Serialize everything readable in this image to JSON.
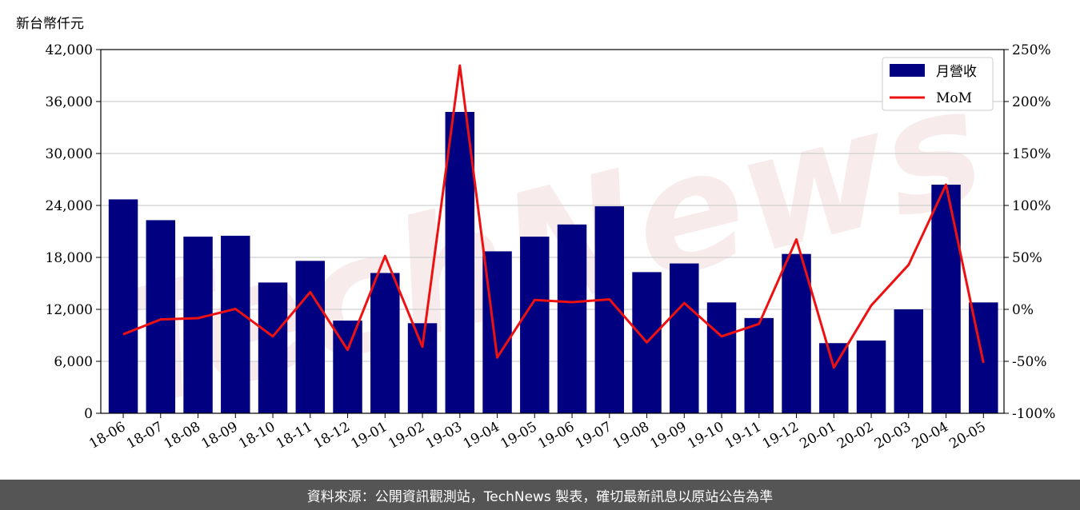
{
  "unit_label": "新台幣仟元",
  "watermark": "TechNews",
  "footer": "資料來源：公開資訊觀測站，TechNews 製表，確切最新訊息以原站公告為準",
  "colors": {
    "bar": "#000080",
    "line": "#ee1111",
    "grid": "#d0d0d0",
    "footer_bg": "#555555"
  },
  "chart_data": {
    "type": "bar",
    "categories": [
      "18-06",
      "18-07",
      "18-08",
      "18-09",
      "18-10",
      "18-11",
      "18-12",
      "19-01",
      "19-02",
      "19-03",
      "19-04",
      "19-05",
      "19-06",
      "19-07",
      "19-08",
      "19-09",
      "19-10",
      "19-11",
      "19-12",
      "20-01",
      "20-02",
      "20-03",
      "20-04",
      "20-05"
    ],
    "series": [
      {
        "name": "月營收",
        "type": "bar",
        "axis": "left",
        "values": [
          24700,
          22300,
          20400,
          20500,
          15100,
          17600,
          10700,
          16200,
          10400,
          34800,
          18700,
          20400,
          21800,
          23900,
          16300,
          17300,
          12800,
          11000,
          18400,
          8100,
          8400,
          12000,
          26400,
          12800
        ]
      },
      {
        "name": "MoM",
        "type": "line",
        "axis": "right",
        "values": [
          -24,
          -9.7,
          -8.5,
          0.5,
          -26,
          16.6,
          -39,
          51.4,
          -36,
          234.6,
          -46.3,
          9.1,
          6.9,
          9.6,
          -31.8,
          6.1,
          -26,
          -14,
          67.3,
          -56,
          3.7,
          42.9,
          120,
          -51.5
        ]
      }
    ],
    "ylim": [
      0,
      42000
    ],
    "y_ticks": [
      "0",
      "6,000",
      "12,000",
      "18,000",
      "24,000",
      "30,000",
      "36,000",
      "42,000"
    ],
    "y2lim": [
      -100,
      250
    ],
    "y2_ticks": [
      "-100%",
      "-50%",
      "0%",
      "50%",
      "100%",
      "150%",
      "200%",
      "250%"
    ],
    "grid": true,
    "legend_position": "top-right"
  }
}
